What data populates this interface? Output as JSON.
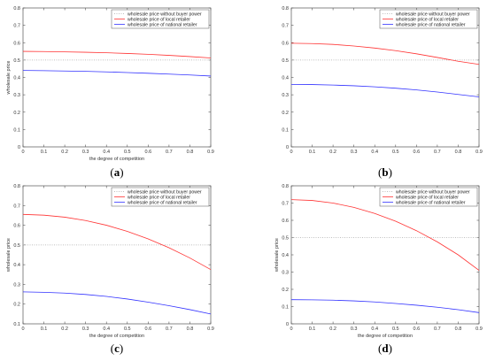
{
  "colors": {
    "baseline": "#aaaaaa",
    "local": "#ff3333",
    "national": "#3333ff",
    "axis": "#555555"
  },
  "chart_data": [
    {
      "type": "line",
      "caption": "(a)",
      "xlabel": "the degree of competition",
      "ylabel": "wholesale price",
      "xlim": [
        0,
        0.9
      ],
      "ylim": [
        0,
        0.8
      ],
      "xticks": [
        "0",
        "0.1",
        "0.2",
        "0.3",
        "0.4",
        "0.5",
        "0.6",
        "0.7",
        "0.8",
        "0.9"
      ],
      "yticks": [
        "0",
        "0.1",
        "0.2",
        "0.3",
        "0.4",
        "0.5",
        "0.6",
        "0.7",
        "0.8"
      ],
      "legend": "top-right",
      "grid": false,
      "x": [
        0,
        0.1,
        0.2,
        0.3,
        0.4,
        0.5,
        0.6,
        0.7,
        0.8,
        0.9
      ],
      "series": [
        {
          "name": "wholesale price without buyer power",
          "color": "#aaaaaa",
          "style": "dotted",
          "values": [
            0.5,
            0.5,
            0.5,
            0.5,
            0.5,
            0.5,
            0.5,
            0.5,
            0.5,
            0.5
          ]
        },
        {
          "name": "wholesale price of local retailer",
          "color": "#ff3333",
          "style": "solid",
          "values": [
            0.55,
            0.549,
            0.547,
            0.545,
            0.542,
            0.538,
            0.533,
            0.527,
            0.52,
            0.512
          ]
        },
        {
          "name": "wholesale price of national retailer",
          "color": "#3333ff",
          "style": "solid",
          "values": [
            0.44,
            0.439,
            0.437,
            0.435,
            0.432,
            0.428,
            0.424,
            0.419,
            0.414,
            0.408
          ]
        }
      ]
    },
    {
      "type": "line",
      "caption": "(b)",
      "xlabel": "",
      "ylabel": "",
      "xlim": [
        0,
        0.9
      ],
      "ylim": [
        0,
        0.8
      ],
      "xticks": [
        "0",
        "0.1",
        "0.2",
        "0.3",
        "0.4",
        "0.5",
        "0.6",
        "0.7",
        "0.8",
        "0.9"
      ],
      "yticks": [
        "0",
        "0.1",
        "0.2",
        "0.3",
        "0.4",
        "0.5",
        "0.6",
        "0.7",
        "0.8"
      ],
      "legend": "top-right",
      "grid": false,
      "x": [
        0,
        0.1,
        0.2,
        0.3,
        0.4,
        0.5,
        0.6,
        0.7,
        0.8,
        0.9
      ],
      "series": [
        {
          "name": "wholesale price without buyer power",
          "color": "#aaaaaa",
          "style": "dotted",
          "values": [
            0.5,
            0.5,
            0.5,
            0.5,
            0.5,
            0.5,
            0.5,
            0.5,
            0.5,
            0.5
          ]
        },
        {
          "name": "wholesale price of local retailer",
          "color": "#ff3333",
          "style": "solid",
          "values": [
            0.597,
            0.595,
            0.59,
            0.581,
            0.569,
            0.554,
            0.536,
            0.515,
            0.493,
            0.475
          ]
        },
        {
          "name": "wholesale price of national retailer",
          "color": "#3333ff",
          "style": "solid",
          "values": [
            0.36,
            0.359,
            0.356,
            0.352,
            0.346,
            0.338,
            0.328,
            0.316,
            0.302,
            0.288
          ]
        }
      ]
    },
    {
      "type": "line",
      "caption": "(c)",
      "xlabel": "the degree of competition",
      "ylabel": "wholesale price",
      "xlim": [
        0,
        0.9
      ],
      "ylim": [
        0.1,
        0.8
      ],
      "xticks": [
        "0",
        "0.1",
        "0.2",
        "0.3",
        "0.4",
        "0.5",
        "0.6",
        "0.7",
        "0.8",
        "0.9"
      ],
      "yticks": [
        "0.1",
        "0.2",
        "0.3",
        "0.4",
        "0.5",
        "0.6",
        "0.7",
        "0.8"
      ],
      "legend": "top-right",
      "grid": false,
      "x": [
        0,
        0.1,
        0.2,
        0.3,
        0.4,
        0.5,
        0.6,
        0.7,
        0.8,
        0.9
      ],
      "series": [
        {
          "name": "wholesale price without buyer power",
          "color": "#aaaaaa",
          "style": "dotted",
          "values": [
            0.5,
            0.5,
            0.5,
            0.5,
            0.5,
            0.5,
            0.5,
            0.5,
            0.5,
            0.5
          ]
        },
        {
          "name": "wholesale price of local retailer",
          "color": "#ff3333",
          "style": "solid",
          "values": [
            0.655,
            0.651,
            0.641,
            0.624,
            0.6,
            0.569,
            0.531,
            0.486,
            0.434,
            0.375
          ]
        },
        {
          "name": "wholesale price of national retailer",
          "color": "#3333ff",
          "style": "solid",
          "values": [
            0.262,
            0.26,
            0.256,
            0.249,
            0.239,
            0.226,
            0.21,
            0.192,
            0.172,
            0.15
          ]
        }
      ]
    },
    {
      "type": "line",
      "caption": "(d)",
      "xlabel": "the degree of competition",
      "ylabel": "wholesale price",
      "xlim": [
        0,
        0.9
      ],
      "ylim": [
        0,
        0.8
      ],
      "xticks": [
        "0",
        "0.1",
        "0.2",
        "0.3",
        "0.4",
        "0.5",
        "0.6",
        "0.7",
        "0.8",
        "0.9"
      ],
      "yticks": [
        "0",
        "0.1",
        "0.2",
        "0.3",
        "0.4",
        "0.5",
        "0.6",
        "0.7",
        "0.8"
      ],
      "legend": "top-right",
      "grid": false,
      "x": [
        0,
        0.1,
        0.2,
        0.3,
        0.4,
        0.5,
        0.6,
        0.7,
        0.8,
        0.9
      ],
      "series": [
        {
          "name": "wholesale price without buyer power",
          "color": "#aaaaaa",
          "style": "dotted",
          "values": [
            0.5,
            0.5,
            0.5,
            0.5,
            0.5,
            0.5,
            0.5,
            0.5,
            0.5,
            0.5
          ]
        },
        {
          "name": "wholesale price of local retailer",
          "color": "#ff3333",
          "style": "solid",
          "values": [
            0.72,
            0.715,
            0.7,
            0.675,
            0.64,
            0.595,
            0.54,
            0.475,
            0.4,
            0.31
          ]
        },
        {
          "name": "wholesale price of national retailer",
          "color": "#3333ff",
          "style": "solid",
          "values": [
            0.14,
            0.139,
            0.137,
            0.133,
            0.127,
            0.118,
            0.108,
            0.096,
            0.082,
            0.065
          ]
        }
      ]
    }
  ]
}
